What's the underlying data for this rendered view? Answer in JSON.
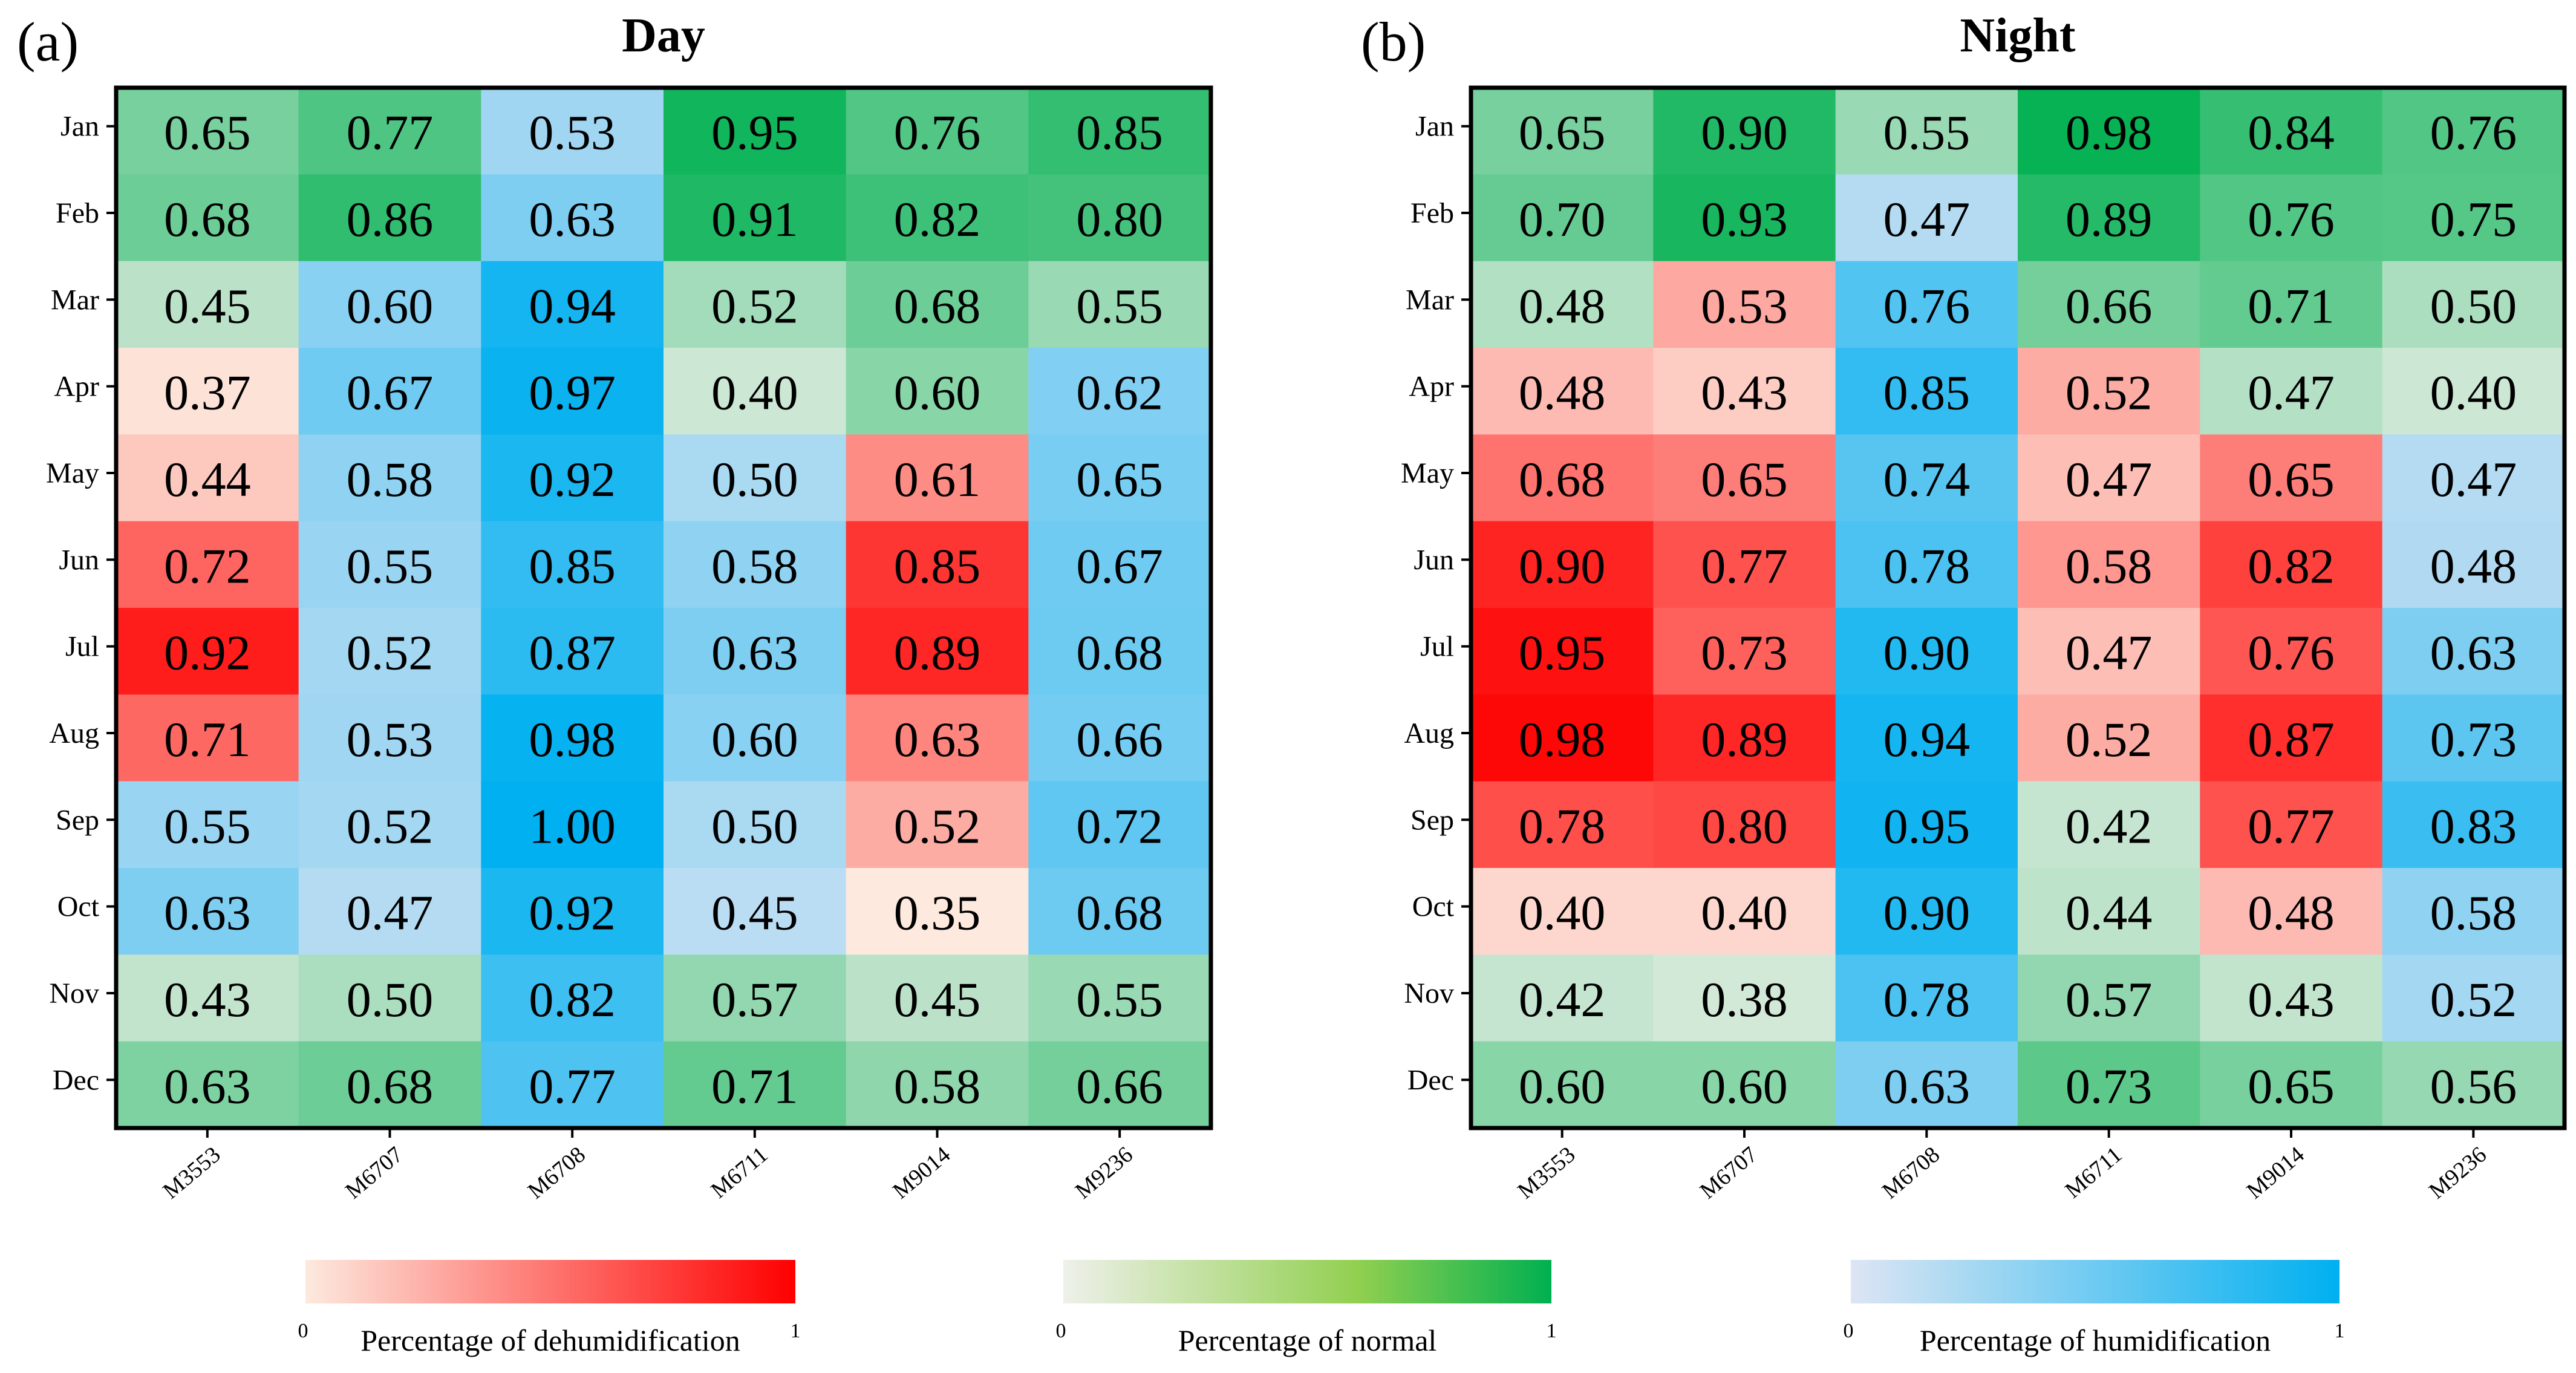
{
  "chart_data": [
    {
      "type": "heatmap",
      "panel_label": "(a)",
      "title": "Day",
      "rows": [
        "Jan",
        "Feb",
        "Mar",
        "Apr",
        "May",
        "Jun",
        "Jul",
        "Aug",
        "Sep",
        "Oct",
        "Nov",
        "Dec"
      ],
      "columns": [
        "M3553",
        "M6707",
        "M6708",
        "M6711",
        "M9014",
        "M9236"
      ],
      "values": [
        [
          0.65,
          0.77,
          0.53,
          0.95,
          0.76,
          0.85
        ],
        [
          0.68,
          0.86,
          0.63,
          0.91,
          0.82,
          0.8
        ],
        [
          0.45,
          0.6,
          0.94,
          0.52,
          0.68,
          0.55
        ],
        [
          0.37,
          0.67,
          0.97,
          0.4,
          0.6,
          0.62
        ],
        [
          0.44,
          0.58,
          0.92,
          0.5,
          0.61,
          0.65
        ],
        [
          0.72,
          0.55,
          0.85,
          0.58,
          0.85,
          0.67
        ],
        [
          0.92,
          0.52,
          0.87,
          0.63,
          0.89,
          0.68
        ],
        [
          0.71,
          0.53,
          0.98,
          0.6,
          0.63,
          0.66
        ],
        [
          0.55,
          0.52,
          1.0,
          0.5,
          0.52,
          0.72
        ],
        [
          0.63,
          0.47,
          0.92,
          0.45,
          0.35,
          0.68
        ],
        [
          0.43,
          0.5,
          0.82,
          0.57,
          0.45,
          0.55
        ],
        [
          0.63,
          0.68,
          0.77,
          0.71,
          0.58,
          0.66
        ]
      ],
      "value_labels": [
        [
          "0.65",
          "0.77",
          "0.53",
          "0.95",
          "0.76",
          "0.85"
        ],
        [
          "0.68",
          "0.86",
          "0.63",
          "0.91",
          "0.82",
          "0.80"
        ],
        [
          "0.45",
          "0.60",
          "0.94",
          "0.52",
          "0.68",
          "0.55"
        ],
        [
          "0.37",
          "0.67",
          "0.97",
          "0.40",
          "0.60",
          "0.62"
        ],
        [
          "0.44",
          "0.58",
          "0.92",
          "0.50",
          "0.61",
          "0.65"
        ],
        [
          "0.72",
          "0.55",
          "0.85",
          "0.58",
          "0.85",
          "0.67"
        ],
        [
          "0.92",
          "0.52",
          "0.87",
          "0.63",
          "0.89",
          "0.68"
        ],
        [
          "0.71",
          "0.53",
          "0.98",
          "0.60",
          "0.63",
          "0.66"
        ],
        [
          "0.55",
          "0.52",
          "1.00",
          "0.50",
          "0.52",
          "0.72"
        ],
        [
          "0.63",
          "0.47",
          "0.92",
          "0.45",
          "0.35",
          "0.68"
        ],
        [
          "0.43",
          "0.50",
          "0.82",
          "0.57",
          "0.45",
          "0.55"
        ],
        [
          "0.63",
          "0.68",
          "0.77",
          "0.71",
          "0.58",
          "0.66"
        ]
      ],
      "categories": [
        [
          "N",
          "N",
          "H",
          "N",
          "N",
          "N"
        ],
        [
          "N",
          "N",
          "H",
          "N",
          "N",
          "N"
        ],
        [
          "N",
          "H",
          "H",
          "N",
          "N",
          "N"
        ],
        [
          "D",
          "H",
          "H",
          "N",
          "N",
          "H"
        ],
        [
          "D",
          "H",
          "H",
          "H",
          "D",
          "H"
        ],
        [
          "D",
          "H",
          "H",
          "H",
          "D",
          "H"
        ],
        [
          "D",
          "H",
          "H",
          "H",
          "D",
          "H"
        ],
        [
          "D",
          "H",
          "H",
          "H",
          "D",
          "H"
        ],
        [
          "H",
          "H",
          "H",
          "H",
          "D",
          "H"
        ],
        [
          "H",
          "H",
          "H",
          "H",
          "D",
          "H"
        ],
        [
          "N",
          "N",
          "H",
          "N",
          "N",
          "N"
        ],
        [
          "N",
          "N",
          "H",
          "N",
          "N",
          "N"
        ]
      ]
    },
    {
      "type": "heatmap",
      "panel_label": "(b)",
      "title": "Night",
      "rows": [
        "Jan",
        "Feb",
        "Mar",
        "Apr",
        "May",
        "Jun",
        "Jul",
        "Aug",
        "Sep",
        "Oct",
        "Nov",
        "Dec"
      ],
      "columns": [
        "M3553",
        "M6707",
        "M6708",
        "M6711",
        "M9014",
        "M9236"
      ],
      "values": [
        [
          0.65,
          0.9,
          0.55,
          0.98,
          0.84,
          0.76
        ],
        [
          0.7,
          0.93,
          0.47,
          0.89,
          0.76,
          0.75
        ],
        [
          0.48,
          0.53,
          0.76,
          0.66,
          0.71,
          0.5
        ],
        [
          0.48,
          0.43,
          0.85,
          0.52,
          0.47,
          0.4
        ],
        [
          0.68,
          0.65,
          0.74,
          0.47,
          0.65,
          0.47
        ],
        [
          0.9,
          0.77,
          0.78,
          0.58,
          0.82,
          0.48
        ],
        [
          0.95,
          0.73,
          0.9,
          0.47,
          0.76,
          0.63
        ],
        [
          0.98,
          0.89,
          0.94,
          0.52,
          0.87,
          0.73
        ],
        [
          0.78,
          0.8,
          0.95,
          0.42,
          0.77,
          0.83
        ],
        [
          0.4,
          0.4,
          0.9,
          0.44,
          0.48,
          0.58
        ],
        [
          0.42,
          0.38,
          0.78,
          0.57,
          0.43,
          0.52
        ],
        [
          0.6,
          0.6,
          0.63,
          0.73,
          0.65,
          0.56
        ]
      ],
      "value_labels": [
        [
          "0.65",
          "0.90",
          "0.55",
          "0.98",
          "0.84",
          "0.76"
        ],
        [
          "0.70",
          "0.93",
          "0.47",
          "0.89",
          "0.76",
          "0.75"
        ],
        [
          "0.48",
          "0.53",
          "0.76",
          "0.66",
          "0.71",
          "0.50"
        ],
        [
          "0.48",
          "0.43",
          "0.85",
          "0.52",
          "0.47",
          "0.40"
        ],
        [
          "0.68",
          "0.65",
          "0.74",
          "0.47",
          "0.65",
          "0.47"
        ],
        [
          "0.90",
          "0.77",
          "0.78",
          "0.58",
          "0.82",
          "0.48"
        ],
        [
          "0.95",
          "0.73",
          "0.90",
          "0.47",
          "0.76",
          "0.63"
        ],
        [
          "0.98",
          "0.89",
          "0.94",
          "0.52",
          "0.87",
          "0.73"
        ],
        [
          "0.78",
          "0.80",
          "0.95",
          "0.42",
          "0.77",
          "0.83"
        ],
        [
          "0.40",
          "0.40",
          "0.90",
          "0.44",
          "0.48",
          "0.58"
        ],
        [
          "0.42",
          "0.38",
          "0.78",
          "0.57",
          "0.43",
          "0.52"
        ],
        [
          "0.60",
          "0.60",
          "0.63",
          "0.73",
          "0.65",
          "0.56"
        ]
      ],
      "categories": [
        [
          "N",
          "N",
          "N",
          "N",
          "N",
          "N"
        ],
        [
          "N",
          "N",
          "H",
          "N",
          "N",
          "N"
        ],
        [
          "N",
          "D",
          "H",
          "N",
          "N",
          "N"
        ],
        [
          "D",
          "D",
          "H",
          "D",
          "N",
          "N"
        ],
        [
          "D",
          "D",
          "H",
          "D",
          "D",
          "H"
        ],
        [
          "D",
          "D",
          "H",
          "D",
          "D",
          "H"
        ],
        [
          "D",
          "D",
          "H",
          "D",
          "D",
          "H"
        ],
        [
          "D",
          "D",
          "H",
          "D",
          "D",
          "H"
        ],
        [
          "D",
          "D",
          "H",
          "N",
          "D",
          "H"
        ],
        [
          "D",
          "D",
          "H",
          "N",
          "D",
          "H"
        ],
        [
          "N",
          "N",
          "H",
          "N",
          "N",
          "H"
        ],
        [
          "N",
          "N",
          "H",
          "N",
          "N",
          "N"
        ]
      ]
    }
  ],
  "legend": [
    {
      "key": "D",
      "label": "Percentage of dehumidification",
      "min_label": "0",
      "max_label": "1",
      "color_low": "#fde9de",
      "color_high": "#fe0000"
    },
    {
      "key": "N",
      "label": "Percentage of normal",
      "min_label": "0",
      "max_label": "1",
      "color_low": "#eef0ea",
      "color_high": "#00b050"
    },
    {
      "key": "H",
      "label": "Percentage of humidification",
      "min_label": "0",
      "max_label": "1",
      "color_low": "#dde5f3",
      "color_high": "#00b0f0"
    }
  ]
}
